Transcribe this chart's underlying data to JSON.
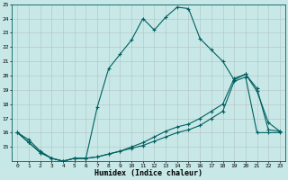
{
  "xlabel": "Humidex (Indice chaleur)",
  "x_values": [
    0,
    1,
    2,
    3,
    4,
    5,
    6,
    7,
    8,
    9,
    10,
    11,
    12,
    13,
    14,
    15,
    16,
    17,
    18,
    19,
    20,
    21,
    22,
    23
  ],
  "line1": [
    16,
    15.5,
    14.7,
    14.2,
    14.0,
    14.2,
    14.2,
    17.8,
    20.5,
    21.5,
    22.5,
    24.0,
    23.2,
    24.1,
    24.8,
    24.7,
    22.6,
    21.8,
    21.0,
    19.7,
    20.1,
    18.9,
    16.7,
    16.1
  ],
  "line2": [
    16,
    15.3,
    14.6,
    14.2,
    14.0,
    14.2,
    14.2,
    14.3,
    14.5,
    14.7,
    14.9,
    15.1,
    15.4,
    15.7,
    16.0,
    16.2,
    16.5,
    17.0,
    17.5,
    19.6,
    19.9,
    16.0,
    16.0,
    16.0
  ],
  "line3": [
    16,
    15.3,
    14.6,
    14.2,
    14.0,
    14.2,
    14.2,
    14.3,
    14.5,
    14.7,
    15.0,
    15.3,
    15.7,
    16.1,
    16.4,
    16.6,
    17.0,
    17.5,
    18.0,
    19.8,
    20.1,
    19.1,
    16.2,
    16.1
  ],
  "ylim_min": 14,
  "ylim_max": 25,
  "ytick_min": 15,
  "ytick_max": 25,
  "line_color": "#006060",
  "bg_color": "#c8e8e8",
  "grid_color": "#b8c8c8"
}
